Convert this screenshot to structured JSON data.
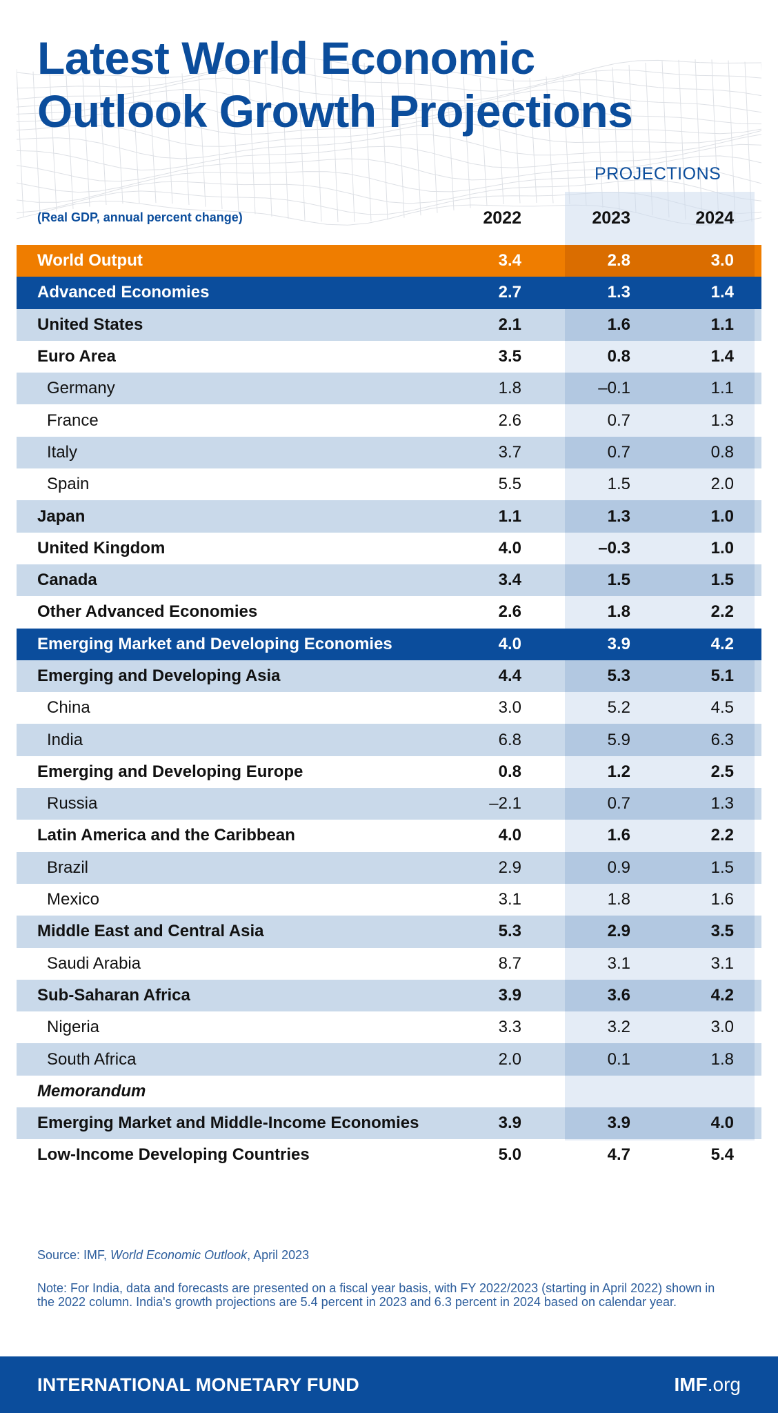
{
  "title_line1": "Latest World Economic",
  "title_line2": "Outlook Growth Projections",
  "projections_label": "PROJECTIONS",
  "subheading": "(Real GDP, annual percent change)",
  "colors": {
    "brand_blue": "#0b4d9c",
    "orange": "#ef7d00",
    "light_row": "#c9d9ea"
  },
  "chart_data": {
    "type": "table",
    "columns": [
      "2022",
      "2023",
      "2024"
    ],
    "rows": [
      {
        "name": "World Output",
        "values": [
          "3.4",
          "2.8",
          "3.0"
        ],
        "style": "orange"
      },
      {
        "name": "Advanced Economies",
        "values": [
          "2.7",
          "1.3",
          "1.4"
        ],
        "style": "blue"
      },
      {
        "name": "United States",
        "values": [
          "2.1",
          "1.6",
          "1.1"
        ],
        "style": "light"
      },
      {
        "name": "Euro Area",
        "values": [
          "3.5",
          "0.8",
          "1.4"
        ],
        "style": "white"
      },
      {
        "name": "Germany",
        "values": [
          "1.8",
          "–0.1",
          "1.1"
        ],
        "style": "light",
        "indent": true
      },
      {
        "name": "France",
        "values": [
          "2.6",
          "0.7",
          "1.3"
        ],
        "style": "white",
        "indent": true
      },
      {
        "name": "Italy",
        "values": [
          "3.7",
          "0.7",
          "0.8"
        ],
        "style": "light",
        "indent": true
      },
      {
        "name": "Spain",
        "values": [
          "5.5",
          "1.5",
          "2.0"
        ],
        "style": "white",
        "indent": true
      },
      {
        "name": "Japan",
        "values": [
          "1.1",
          "1.3",
          "1.0"
        ],
        "style": "light"
      },
      {
        "name": "United Kingdom",
        "values": [
          "4.0",
          "–0.3",
          "1.0"
        ],
        "style": "white"
      },
      {
        "name": "Canada",
        "values": [
          "3.4",
          "1.5",
          "1.5"
        ],
        "style": "light"
      },
      {
        "name": "Other Advanced Economies",
        "values": [
          "2.6",
          "1.8",
          "2.2"
        ],
        "style": "white"
      },
      {
        "name": "Emerging Market and Developing Economies",
        "values": [
          "4.0",
          "3.9",
          "4.2"
        ],
        "style": "blue"
      },
      {
        "name": "Emerging and Developing Asia",
        "values": [
          "4.4",
          "5.3",
          "5.1"
        ],
        "style": "light"
      },
      {
        "name": "China",
        "values": [
          "3.0",
          "5.2",
          "4.5"
        ],
        "style": "white",
        "indent": true
      },
      {
        "name": "India",
        "values": [
          "6.8",
          "5.9",
          "6.3"
        ],
        "style": "light",
        "indent": true
      },
      {
        "name": "Emerging and Developing Europe",
        "values": [
          "0.8",
          "1.2",
          "2.5"
        ],
        "style": "white"
      },
      {
        "name": "Russia",
        "values": [
          "–2.1",
          "0.7",
          "1.3"
        ],
        "style": "light",
        "indent": true
      },
      {
        "name": "Latin America and the Caribbean",
        "values": [
          "4.0",
          "1.6",
          "2.2"
        ],
        "style": "white"
      },
      {
        "name": "Brazil",
        "values": [
          "2.9",
          "0.9",
          "1.5"
        ],
        "style": "light",
        "indent": true
      },
      {
        "name": "Mexico",
        "values": [
          "3.1",
          "1.8",
          "1.6"
        ],
        "style": "white",
        "indent": true
      },
      {
        "name": "Middle East and Central Asia",
        "values": [
          "5.3",
          "2.9",
          "3.5"
        ],
        "style": "light"
      },
      {
        "name": "Saudi Arabia",
        "values": [
          "8.7",
          "3.1",
          "3.1"
        ],
        "style": "white",
        "indent": true
      },
      {
        "name": "Sub-Saharan Africa",
        "values": [
          "3.9",
          "3.6",
          "4.2"
        ],
        "style": "light"
      },
      {
        "name": "Nigeria",
        "values": [
          "3.3",
          "3.2",
          "3.0"
        ],
        "style": "white",
        "indent": true
      },
      {
        "name": "South Africa",
        "values": [
          "2.0",
          "0.1",
          "1.8"
        ],
        "style": "light",
        "indent": true
      },
      {
        "name": "Memorandum",
        "values": [
          "",
          "",
          ""
        ],
        "style": "white",
        "italic": true
      },
      {
        "name": "Emerging Market and Middle-Income Economies",
        "values": [
          "3.9",
          "3.9",
          "4.0"
        ],
        "style": "light"
      },
      {
        "name": "Low-Income Developing Countries",
        "values": [
          "5.0",
          "4.7",
          "5.4"
        ],
        "style": "white"
      }
    ]
  },
  "source_prefix": "Source: IMF, ",
  "source_title": "World Economic Outlook",
  "source_suffix": ", April 2023",
  "note": "Note: For India, data and forecasts are presented on a fiscal year basis, with FY 2022/2023 (starting in April 2022) shown in the 2022 column. India's growth projections are 5.4 percent in 2023 and 6.3 percent in 2024 based on calendar year.",
  "footer_org": "INTERNATIONAL MONETARY FUND",
  "footer_site_bold": "IMF",
  "footer_site_rest": ".org"
}
